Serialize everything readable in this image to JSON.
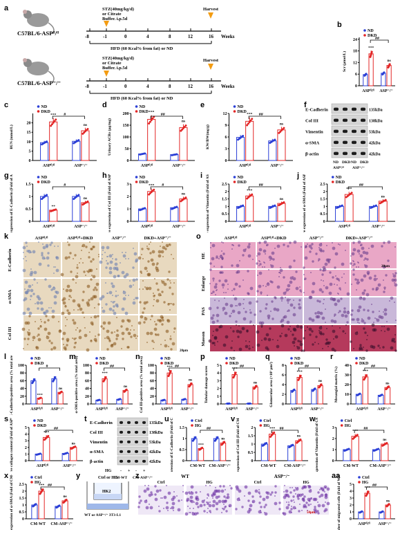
{
  "panel_letters": [
    "a",
    "b",
    "c",
    "d",
    "e",
    "f",
    "g",
    "h",
    "i",
    "j",
    "k",
    "o",
    "l",
    "m",
    "n",
    "p",
    "q",
    "r",
    "s",
    "t",
    "u",
    "v",
    "w",
    "x",
    "y",
    "z",
    "aa"
  ],
  "panel_a": {
    "mouse1": "C57BL/6-ASPᶠˡ/ᶠˡ",
    "mouse2": "C57BL/6-ASP⁻/⁻",
    "stz_text": [
      "STZ(40mg/kg/d)",
      "or Citrate",
      "Buffer. i.p.5d"
    ],
    "harvest": "Harvest",
    "timeline": [
      "-8",
      "-1",
      "0",
      "4",
      "8",
      "12",
      "16"
    ],
    "weeks": "Weeks",
    "hfd": "HFD (60 Kcal% from fat) or ND"
  },
  "legend": {
    "nd": "ND",
    "dkd": "DKD",
    "ctrl": "Ctrl",
    "hg": "HG"
  },
  "groups": {
    "fl": "ASPᶠˡ/ᶠˡ",
    "ko": "ASP⁻/⁻",
    "cm_wt": "CM-WT",
    "cm_ko": "CM-ASP⁻/⁻"
  },
  "chart_data": [
    {
      "panel": "b",
      "type": "bar",
      "ylabel": "Scr (μmol/L)",
      "ylim": [
        0,
        25
      ],
      "yticks": [
        0,
        6,
        12,
        18,
        24
      ],
      "series": [
        {
          "name": "ND",
          "values": [
            5.8,
            6.5
          ]
        },
        {
          "name": "DKD",
          "values": [
            16.5,
            10.5
          ]
        }
      ],
      "marks": [
        "***",
        "ns",
        "##"
      ]
    },
    {
      "panel": "c",
      "type": "bar",
      "ylabel": "BUN (mmol/L)",
      "ylim": [
        0,
        25
      ],
      "yticks": [
        0,
        5,
        10,
        15,
        20
      ],
      "series": [
        {
          "name": "ND",
          "values": [
            9.5,
            10.2
          ]
        },
        {
          "name": "DKD",
          "values": [
            20.5,
            15.8
          ]
        }
      ],
      "marks": [
        "***",
        "ns",
        "#"
      ]
    },
    {
      "panel": "d",
      "type": "bar",
      "ylabel": "Urinary ACRs (μg/mg)",
      "ylim": [
        0,
        200
      ],
      "yticks": [
        0,
        50,
        100,
        150,
        200
      ],
      "series": [
        {
          "name": "ND",
          "values": [
            28,
            25
          ]
        },
        {
          "name": "DKD",
          "values": [
            175,
            140
          ]
        }
      ],
      "marks": [
        "***",
        "ns",
        "##"
      ]
    },
    {
      "panel": "e",
      "type": "bar",
      "ylabel": "KW/BW(mg/g)",
      "ylim": [
        0,
        12
      ],
      "yticks": [
        0,
        3,
        6,
        9,
        12
      ],
      "series": [
        {
          "name": "ND",
          "values": [
            5.9,
            5.0
          ]
        },
        {
          "name": "DKD",
          "values": [
            10.0,
            7.8
          ]
        }
      ],
      "marks": [
        "***",
        "ns",
        "##"
      ]
    },
    {
      "panel": "g",
      "type": "bar",
      "ylabel": "Relative expression of E-Cadherin (Fold of ASPᶠˡ/ᶠˡ-ND)",
      "ylim": [
        0,
        1.5
      ],
      "yticks": [
        0.0,
        0.5,
        1.0,
        1.5
      ],
      "series": [
        {
          "name": "ND",
          "values": [
            1.0,
            1.0
          ]
        },
        {
          "name": "DKD",
          "values": [
            0.45,
            0.75
          ]
        }
      ],
      "marks": [
        "**",
        "ns",
        "#"
      ]
    },
    {
      "panel": "h",
      "type": "bar",
      "ylabel": "Relative expression of Col III (Fold of ASPᶠˡ/ᶠˡ-ND)",
      "ylim": [
        0,
        3
      ],
      "yticks": [
        0,
        1,
        2,
        3
      ],
      "series": [
        {
          "name": "ND",
          "values": [
            1.0,
            1.1
          ]
        },
        {
          "name": "DKD",
          "values": [
            2.4,
            1.8
          ]
        }
      ],
      "marks": [
        "***",
        "ns",
        "#"
      ]
    },
    {
      "panel": "i",
      "type": "bar",
      "ylabel": "Relative expression of Vimentin (Fold of ASPᶠˡ/ᶠˡ-ND)",
      "ylim": [
        0,
        2.5
      ],
      "yticks": [
        0.0,
        0.5,
        1.0,
        1.5,
        2.0,
        2.5
      ],
      "series": [
        {
          "name": "ND",
          "values": [
            1.0,
            1.0
          ]
        },
        {
          "name": "DKD",
          "values": [
            1.7,
            1.2
          ]
        }
      ],
      "marks": [
        "***",
        "ns",
        "##"
      ]
    },
    {
      "panel": "j",
      "type": "bar",
      "ylabel": "Relative expression of α-SMA (Fold of ASPᶠˡ/ᶠˡ-ND)",
      "ylim": [
        0,
        2.5
      ],
      "yticks": [
        0.0,
        0.5,
        1.0,
        1.5,
        2.0,
        2.5
      ],
      "series": [
        {
          "name": "ND",
          "values": [
            1.0,
            1.0
          ]
        },
        {
          "name": "DKD",
          "values": [
            1.8,
            1.35
          ]
        }
      ],
      "marks": [
        "***",
        "ns",
        "##"
      ]
    },
    {
      "panel": "l",
      "type": "bar",
      "ylabel": "E-Cadherin-positive area (% total area)",
      "ylim": [
        0,
        100
      ],
      "yticks": [
        0,
        20,
        40,
        60,
        80,
        100
      ],
      "series": [
        {
          "name": "ND",
          "values": [
            60,
            65
          ]
        },
        {
          "name": "DKD",
          "values": [
            15,
            30
          ]
        }
      ],
      "marks": [
        "***",
        "ns",
        "#"
      ]
    },
    {
      "panel": "m",
      "type": "bar",
      "ylabel": "α-SMA-positive area (% total area)",
      "ylim": [
        0,
        100
      ],
      "yticks": [
        0,
        20,
        40,
        60,
        80,
        100
      ],
      "series": [
        {
          "name": "ND",
          "values": [
            10,
            12
          ]
        },
        {
          "name": "DKD",
          "values": [
            65,
            35
          ]
        }
      ],
      "marks": [
        "***",
        "ns",
        "##"
      ]
    },
    {
      "panel": "n",
      "type": "bar",
      "ylabel": "Col III-positive area (% total area)",
      "ylim": [
        0,
        100
      ],
      "yticks": [
        0,
        20,
        40,
        60,
        80,
        100
      ],
      "series": [
        {
          "name": "ND",
          "values": [
            10,
            12
          ]
        },
        {
          "name": "DKD",
          "values": [
            80,
            50
          ]
        }
      ],
      "marks": [
        "***",
        "ns",
        "##"
      ]
    },
    {
      "panel": "p",
      "type": "bar",
      "ylabel": "Tubular damage scores",
      "ylim": [
        0,
        5
      ],
      "yticks": [
        0,
        1,
        2,
        3,
        4,
        5
      ],
      "series": [
        {
          "name": "ND",
          "values": [
            0.05,
            0.05
          ]
        },
        {
          "name": "DKD",
          "values": [
            3.8,
            2.2
          ]
        }
      ],
      "marks": [
        "***",
        "ns",
        "##"
      ]
    },
    {
      "panel": "q",
      "type": "bar",
      "ylabel": "Glomerular area (×10³ μm²)",
      "ylim": [
        0,
        8
      ],
      "yticks": [
        0,
        2,
        4,
        6,
        8
      ],
      "series": [
        {
          "name": "ND",
          "values": [
            2.8,
            3.0
          ]
        },
        {
          "name": "DKD",
          "values": [
            5.5,
            3.8
          ]
        }
      ],
      "marks": [
        "***",
        "ns",
        "##"
      ]
    },
    {
      "panel": "r",
      "type": "bar",
      "ylabel": "Mesangial matrix (%)",
      "ylim": [
        0,
        40
      ],
      "yticks": [
        0,
        10,
        20,
        30,
        40
      ],
      "series": [
        {
          "name": "ND",
          "values": [
            10,
            9
          ]
        },
        {
          "name": "DKD",
          "values": [
            28,
            17
          ]
        }
      ],
      "marks": [
        "***",
        "ns",
        "##"
      ]
    },
    {
      "panel": "s",
      "type": "bar",
      "ylabel": "Relative collagen content (Fold of ASPᶠˡ/ᶠˡ-ND)",
      "ylim": [
        0,
        5
      ],
      "yticks": [
        0,
        1,
        2,
        3,
        4,
        5
      ],
      "series": [
        {
          "name": "ND",
          "values": [
            1.0,
            1.1
          ]
        },
        {
          "name": "DKD",
          "values": [
            3.5,
            2.0
          ]
        }
      ],
      "marks": [
        "***",
        "ns",
        "##"
      ]
    },
    {
      "panel": "u",
      "type": "bar",
      "ylabel": "Relative expression of E-Cadherin (Fold of CM-WT-Ctrl)",
      "ylim": [
        0,
        1.5
      ],
      "yticks": [
        0.0,
        0.5,
        1.0,
        1.5
      ],
      "series": [
        {
          "name": "Ctrl",
          "values": [
            1.0,
            1.0
          ]
        },
        {
          "name": "HG",
          "values": [
            0.55,
            0.8
          ]
        }
      ],
      "marks": [
        "***",
        "ns",
        "##"
      ]
    },
    {
      "panel": "v",
      "type": "bar",
      "ylabel": "Relative expression of Col III (Fold of CM-WT-Ctrl)",
      "ylim": [
        0,
        2
      ],
      "yticks": [
        0.0,
        0.5,
        1.0,
        1.5,
        2.0
      ],
      "series": [
        {
          "name": "Ctrl",
          "values": [
            1.0,
            0.9
          ]
        },
        {
          "name": "HG",
          "values": [
            1.6,
            1.2
          ]
        }
      ],
      "marks": [
        "***",
        "ns",
        "##"
      ]
    },
    {
      "panel": "w",
      "type": "bar",
      "ylabel": "Relative expression of Vimentin (Fold of CM-WT-Ctrl)",
      "ylim": [
        0,
        3
      ],
      "yticks": [
        0,
        1,
        2,
        3
      ],
      "series": [
        {
          "name": "Ctrl",
          "values": [
            1.0,
            1.0
          ]
        },
        {
          "name": "HG",
          "values": [
            2.2,
            1.5
          ]
        }
      ],
      "marks": [
        "***",
        "ns",
        "##"
      ]
    },
    {
      "panel": "x",
      "type": "bar",
      "ylabel": "Relative expression of α-SMA (Fold of CM-WT-Ctrl)",
      "ylim": [
        0,
        2.5
      ],
      "yticks": [
        0.0,
        0.5,
        1.0,
        1.5,
        2.0,
        2.5
      ],
      "series": [
        {
          "name": "Ctrl",
          "values": [
            1.0,
            0.9
          ]
        },
        {
          "name": "HG",
          "values": [
            2.0,
            1.3
          ]
        }
      ],
      "marks": [
        "***",
        "ns",
        "##"
      ]
    },
    {
      "panel": "aa",
      "type": "bar",
      "ylabel": "Number of migrated cells (Fold of WT-Ctrl)",
      "ylim": [
        0,
        5
      ],
      "yticks": [
        0,
        1,
        2,
        3,
        4,
        5
      ],
      "series": [
        {
          "name": "Ctrl",
          "values": [
            1.0,
            1.0
          ]
        },
        {
          "name": "HG",
          "values": [
            3.7,
            2.0
          ]
        }
      ],
      "marks": [
        "***",
        "ns",
        "##"
      ]
    }
  ],
  "blot_f": {
    "bands": [
      "E-Cadherin",
      "Col III",
      "Vimentin",
      "α-SMA",
      "β-actin"
    ],
    "sizes": [
      "135kDa",
      "138kDa",
      "53kDa",
      "42kDa",
      "42kDa"
    ],
    "groups": [
      "ND",
      "DKD",
      "ND",
      "DKD"
    ],
    "genotypes": [
      "ASPᶠˡ/ᶠˡ",
      "ASP⁻/⁻"
    ]
  },
  "blot_t": {
    "bands": [
      "E-Cadherin",
      "Col III",
      "Vimentin",
      "α-SMA",
      "β-actin"
    ],
    "sizes": [
      "135kDa",
      "138kDa",
      "53kDa",
      "42kDa",
      "42kDa"
    ],
    "hg": "HG",
    "hg_signs": [
      "-",
      "+",
      "-",
      "+"
    ],
    "groups": [
      "CM-WT",
      "CM-ASP⁻/⁻"
    ]
  },
  "panel_k": {
    "columns": [
      "ASPᶠˡ/ᶠˡ",
      "ASPᶠˡ/ᶠˡ+DKD",
      "ASP⁻/⁻",
      "DKD+ASP⁻/⁻"
    ],
    "rows": [
      "E-Cadherin",
      "α-SMA",
      "Col III"
    ],
    "scale": "20μm"
  },
  "panel_o": {
    "columns": [
      "ASPᶠˡ/ᶠˡ",
      "ASPᶠˡ/ᶠˡ+DKD",
      "ASP⁻/⁻",
      "DKD+ASP⁻/⁻"
    ],
    "rows": [
      "HE",
      "Enlarge",
      "PAS",
      "Masson"
    ],
    "scale": "20μm"
  },
  "panel_y": {
    "top": "Ctrl or HG",
    "hk2": "HK2",
    "bottom": "WT or ASP⁻/⁻ 3T3-L1"
  },
  "panel_z": {
    "groups": [
      "WT",
      "ASP⁻/⁻"
    ],
    "conditions": [
      "Ctrl",
      "HG",
      "Ctrl",
      "HG"
    ],
    "scale": "50μm"
  },
  "colors": {
    "nd": "#2b3fd6",
    "dkd": "#e32525",
    "ihc_bg": "#e8d9bf",
    "he_bg": "#e9a7c6",
    "pas_bg": "#c9b8d9",
    "masson_bg": "#b53a5c"
  }
}
